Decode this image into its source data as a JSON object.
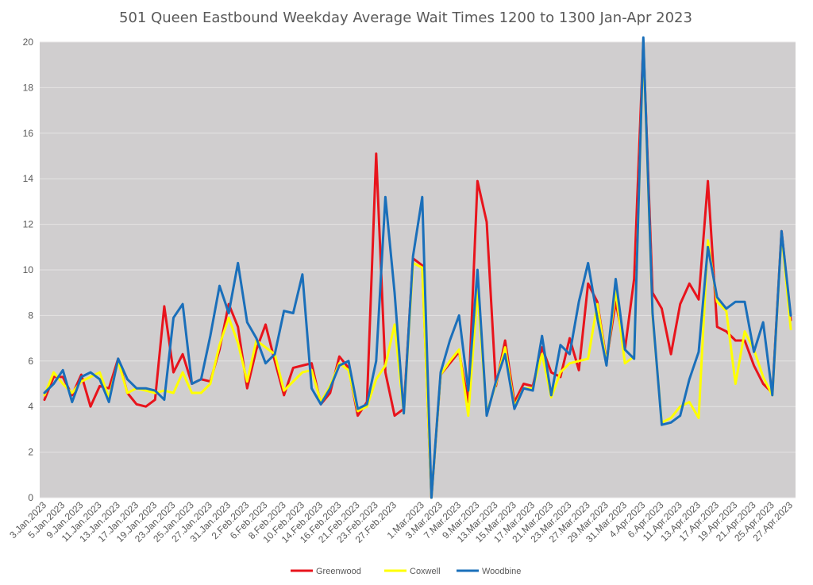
{
  "chart_data": {
    "type": "line",
    "title": "501 Queen Eastbound Weekday Average Wait Times 1200 to 1300 Jan-Apr 2023",
    "xlabel": "",
    "ylabel": "",
    "ylim": [
      0,
      20
    ],
    "y_ticks": [
      0,
      2,
      4,
      6,
      8,
      10,
      12,
      14,
      16,
      18,
      20
    ],
    "grid": true,
    "legend_position": "bottom",
    "x_tick_labels": [
      "3.Jan.2023",
      "5.Jan.2023",
      "9.Jan.2023",
      "11.Jan.2023",
      "13.Jan.2023",
      "17.Jan.2023",
      "19.Jan.2023",
      "23.Jan.2023",
      "25.Jan.2023",
      "27.Jan.2023",
      "31.Jan.2023",
      "2.Feb.2023",
      "6.Feb.2023",
      "8.Feb.2023",
      "10.Feb.2023",
      "14.Feb.2023",
      "16.Feb.2023",
      "21.Feb.2023",
      "23.Feb.2023",
      "27.Feb.2023",
      "1.Mar.2023",
      "3.Mar.2023",
      "7.Mar.2023",
      "9.Mar.2023",
      "13.Mar.2023",
      "15.Mar.2023",
      "17.Mar.2023",
      "21.Mar.2023",
      "23.Mar.2023",
      "27.Mar.2023",
      "29.Mar.2023",
      "31.Mar.2023",
      "4.Apr.2023",
      "6.Apr.2023",
      "11.Apr.2023",
      "13.Apr.2023",
      "17.Apr.2023",
      "19.Apr.2023",
      "21.Apr.2023",
      "25.Apr.2023",
      "27.Apr.2023"
    ],
    "series": [
      {
        "name": "Greenwood",
        "color": "#e8141c",
        "values": [
          4.3,
          5.3,
          5.3,
          4.5,
          5.4,
          4.0,
          4.9,
          4.8,
          6.1,
          4.6,
          4.1,
          4.0,
          4.3,
          8.4,
          5.5,
          6.3,
          5.0,
          5.2,
          5.1,
          6.5,
          8.5,
          7.5,
          4.8,
          6.5,
          7.6,
          6.0,
          4.5,
          5.7,
          5.8,
          5.9,
          4.1,
          4.6,
          6.2,
          5.7,
          3.6,
          4.2,
          15.1,
          5.5,
          3.6,
          3.9,
          10.5,
          10.2,
          0.0,
          5.4,
          5.9,
          6.4,
          4.2,
          13.9,
          12.1,
          4.9,
          6.9,
          4.2,
          5.0,
          4.9,
          6.6,
          5.5,
          5.3,
          7.0,
          5.6,
          9.4,
          8.6,
          6.0,
          8.6,
          6.5,
          9.6,
          20.0,
          9.0,
          8.3,
          6.3,
          8.5,
          9.4,
          8.7,
          13.9,
          7.5,
          7.3,
          6.9,
          6.9,
          5.8,
          5.0,
          4.6,
          11.7,
          7.8
        ]
      },
      {
        "name": "Coxwell",
        "color": "#ffff00",
        "values": [
          4.5,
          5.5,
          5.0,
          4.6,
          5.1,
          5.3,
          5.5,
          4.4,
          6.0,
          4.6,
          4.8,
          4.7,
          4.6,
          4.7,
          4.6,
          5.5,
          4.6,
          4.6,
          5.0,
          6.7,
          7.9,
          6.8,
          5.1,
          6.9,
          6.6,
          6.3,
          4.7,
          5.1,
          5.5,
          5.6,
          4.2,
          4.9,
          5.9,
          5.6,
          3.8,
          4.0,
          5.2,
          5.8,
          7.6,
          3.7,
          10.3,
          10.1,
          0.0,
          5.4,
          6.0,
          6.5,
          3.6,
          9.1,
          3.7,
          5.0,
          6.6,
          4.0,
          4.8,
          4.8,
          6.3,
          4.4,
          5.5,
          5.9,
          6.0,
          6.1,
          8.5,
          5.9,
          9.1,
          5.9,
          6.2,
          20.0,
          8.0,
          3.3,
          3.5,
          4.0,
          4.2,
          3.5,
          11.3,
          8.6,
          8.2,
          5.0,
          7.3,
          6.5,
          5.3,
          4.5,
          11.6,
          7.4
        ]
      },
      {
        "name": "Woodbine",
        "color": "#1a6fba",
        "values": [
          4.6,
          5.0,
          5.6,
          4.2,
          5.3,
          5.5,
          5.2,
          4.2,
          6.1,
          5.2,
          4.8,
          4.8,
          4.7,
          4.3,
          7.9,
          8.5,
          5.0,
          5.2,
          7.1,
          9.3,
          8.1,
          10.3,
          7.7,
          7.0,
          5.9,
          6.3,
          8.2,
          8.1,
          9.8,
          4.8,
          4.1,
          4.8,
          5.8,
          6.0,
          3.9,
          4.1,
          6.0,
          13.2,
          9.0,
          3.7,
          10.6,
          13.2,
          0.0,
          5.5,
          6.9,
          8.0,
          4.7,
          10.0,
          3.6,
          5.1,
          6.3,
          3.9,
          4.8,
          4.7,
          7.1,
          4.5,
          6.7,
          6.3,
          8.6,
          10.3,
          7.9,
          5.8,
          9.6,
          6.5,
          6.1,
          20.2,
          8.1,
          3.2,
          3.3,
          3.6,
          5.2,
          6.4,
          11.0,
          8.8,
          8.3,
          8.6,
          8.6,
          6.4,
          7.7,
          4.5,
          11.7,
          8.0
        ]
      }
    ]
  }
}
